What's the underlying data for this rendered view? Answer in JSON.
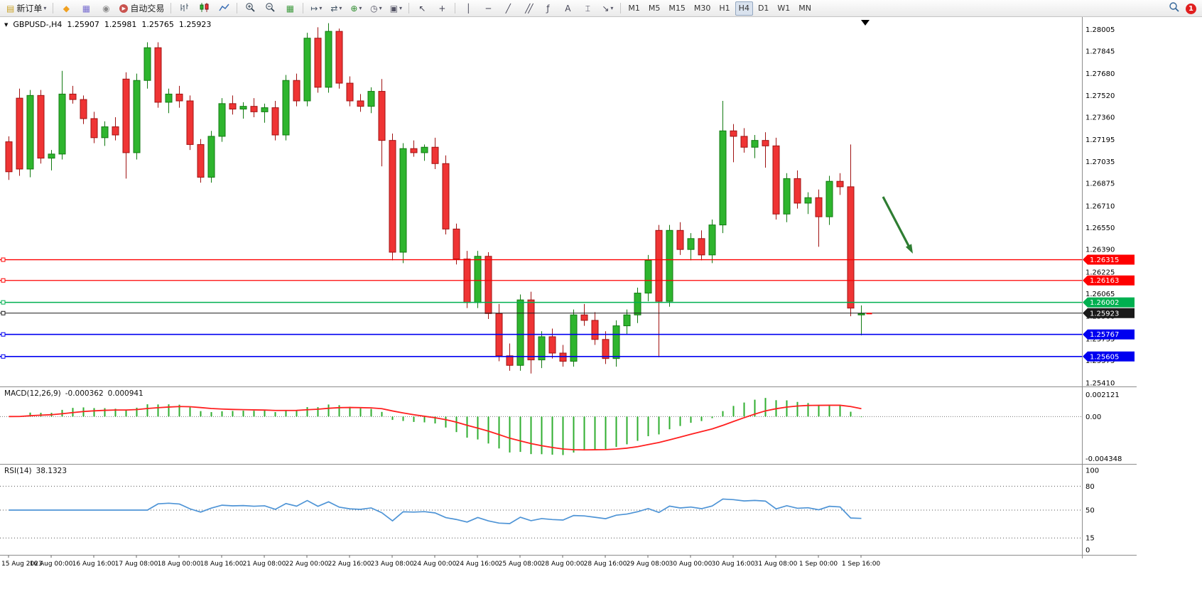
{
  "toolbar": {
    "new_order_label": "新订单",
    "autotrading_label": "自动交易",
    "timeframes": [
      "M1",
      "M5",
      "M15",
      "M30",
      "H1",
      "H4",
      "D1",
      "W1",
      "MN"
    ],
    "active_timeframe": "H4",
    "badge": "1"
  },
  "icons": {
    "dropdown": "▾",
    "new_order": "▤",
    "market": "◆",
    "data_window": "▦",
    "navigator": "◉",
    "autotrading": "▶",
    "tile": "▦",
    "auto_scroll": "↦",
    "chart_shift": "⇄",
    "indicators": "⊕",
    "periods": "◷",
    "templates": "▣",
    "cursor": "↖",
    "crosshair": "+",
    "vertical_line": "│",
    "horizontal_line": "─",
    "trendline": "╱",
    "channel": "╱╱",
    "fibonacci": "ƒ",
    "text": "A",
    "text_label": "⌶",
    "arrows": "↘"
  },
  "symbol_header": {
    "symbol": "GBPUSD-,H4",
    "open": "1.25907",
    "high": "1.25981",
    "low": "1.25765",
    "close": "1.25923"
  },
  "chart": {
    "price_axis": [
      "1.28005",
      "1.27845",
      "1.27680",
      "1.27520",
      "1.27360",
      "1.27195",
      "1.27035",
      "1.26875",
      "1.26710",
      "1.26550",
      "1.26390",
      "1.26225",
      "1.26065",
      "1.25900",
      "1.25735",
      "1.25575",
      "1.25410"
    ],
    "levels": [
      {
        "price": 1.26315,
        "label": "1.26315",
        "color": "#fe0000",
        "width": 1.3
      },
      {
        "price": 1.26163,
        "label": "1.26163",
        "color": "#fe0000",
        "width": 1.3
      },
      {
        "price": 1.26002,
        "label": "1.26002",
        "color": "#00b050",
        "width": 1.5
      },
      {
        "price": 1.25923,
        "label": "1.25923",
        "color": "#1a1a1a",
        "width": 1.0
      },
      {
        "price": 1.25767,
        "label": "1.25767",
        "color": "#0000f0",
        "width": 1.6
      },
      {
        "price": 1.25605,
        "label": "1.25605",
        "color": "#0000f0",
        "width": 1.6
      }
    ],
    "time_axis": [
      "15 Aug 2023",
      "16 Aug 00:00",
      "16 Aug 16:00",
      "17 Aug 08:00",
      "18 Aug 00:00",
      "18 Aug 16:00",
      "21 Aug 08:00",
      "22 Aug 00:00",
      "22 Aug 16:00",
      "23 Aug 08:00",
      "24 Aug 00:00",
      "24 Aug 16:00",
      "25 Aug 08:00",
      "28 Aug 00:00",
      "28 Aug 16:00",
      "29 Aug 08:00",
      "30 Aug 00:00",
      "30 Aug 16:00",
      "31 Aug 08:00",
      "1 Sep 00:00",
      "1 Sep 16:00"
    ]
  },
  "chart_data": {
    "type": "candlestick",
    "symbol": "GBPUSD-",
    "timeframe": "H4",
    "ohlc_order": [
      "open",
      "high",
      "low",
      "close"
    ],
    "candles": [
      [
        1.2718,
        1.2722,
        1.269,
        1.2696
      ],
      [
        1.275,
        1.2757,
        1.2693,
        1.2698
      ],
      [
        1.2698,
        1.2756,
        1.2692,
        1.2752
      ],
      [
        1.2752,
        1.2756,
        1.2702,
        1.2706
      ],
      [
        1.2706,
        1.2712,
        1.2697,
        1.2709
      ],
      [
        1.2709,
        1.277,
        1.2705,
        1.2753
      ],
      [
        1.2753,
        1.2759,
        1.2746,
        1.2749
      ],
      [
        1.2749,
        1.2752,
        1.2731,
        1.2735
      ],
      [
        1.2735,
        1.274,
        1.2717,
        1.2721
      ],
      [
        1.2721,
        1.2733,
        1.2715,
        1.2729
      ],
      [
        1.2729,
        1.2736,
        1.2719,
        1.2723
      ],
      [
        1.2764,
        1.2769,
        1.2691,
        1.271
      ],
      [
        1.271,
        1.2768,
        1.2705,
        1.2763
      ],
      [
        1.2763,
        1.2791,
        1.2757,
        1.2787
      ],
      [
        1.2787,
        1.2791,
        1.2743,
        1.2747
      ],
      [
        1.2747,
        1.2757,
        1.2739,
        1.2753
      ],
      [
        1.2753,
        1.2759,
        1.2743,
        1.2748
      ],
      [
        1.2748,
        1.2752,
        1.2712,
        1.2716
      ],
      [
        1.2716,
        1.272,
        1.2688,
        1.2692
      ],
      [
        1.2692,
        1.2726,
        1.2688,
        1.2722
      ],
      [
        1.2722,
        1.275,
        1.2718,
        1.2746
      ],
      [
        1.2746,
        1.2752,
        1.2738,
        1.2742
      ],
      [
        1.2742,
        1.2747,
        1.2735,
        1.2744
      ],
      [
        1.2744,
        1.275,
        1.2736,
        1.274
      ],
      [
        1.274,
        1.2746,
        1.2732,
        1.2743
      ],
      [
        1.2743,
        1.2748,
        1.2719,
        1.2723
      ],
      [
        1.2723,
        1.2767,
        1.2719,
        1.2763
      ],
      [
        1.2763,
        1.2768,
        1.2744,
        1.2748
      ],
      [
        1.2748,
        1.2798,
        1.2744,
        1.2794
      ],
      [
        1.2794,
        1.2802,
        1.2754,
        1.2758
      ],
      [
        1.2758,
        1.2805,
        1.2754,
        1.2799
      ],
      [
        1.2799,
        1.2801,
        1.2757,
        1.2761
      ],
      [
        1.2761,
        1.2766,
        1.2744,
        1.2748
      ],
      [
        1.2748,
        1.2753,
        1.274,
        1.2744
      ],
      [
        1.2744,
        1.2758,
        1.2739,
        1.2755
      ],
      [
        1.2755,
        1.2764,
        1.27,
        1.2719
      ],
      [
        1.2719,
        1.2724,
        1.2631,
        1.2637
      ],
      [
        1.2637,
        1.2717,
        1.2629,
        1.2713
      ],
      [
        1.2713,
        1.2719,
        1.2707,
        1.271
      ],
      [
        1.271,
        1.2716,
        1.2704,
        1.2714
      ],
      [
        1.2714,
        1.2721,
        1.2698,
        1.2702
      ],
      [
        1.2702,
        1.2708,
        1.265,
        1.2654
      ],
      [
        1.2654,
        1.2658,
        1.2628,
        1.2632
      ],
      [
        1.2632,
        1.2638,
        1.2596,
        1.26
      ],
      [
        1.26,
        1.2638,
        1.2596,
        1.2634
      ],
      [
        1.2634,
        1.2637,
        1.2588,
        1.2592
      ],
      [
        1.2592,
        1.2599,
        1.2557,
        1.2561
      ],
      [
        1.2561,
        1.257,
        1.255,
        1.2554
      ],
      [
        1.2554,
        1.2606,
        1.255,
        1.2602
      ],
      [
        1.2602,
        1.2608,
        1.2548,
        1.2558
      ],
      [
        1.2558,
        1.2579,
        1.2552,
        1.2575
      ],
      [
        1.2575,
        1.2581,
        1.2559,
        1.2563
      ],
      [
        1.2563,
        1.2569,
        1.2553,
        1.2557
      ],
      [
        1.2557,
        1.2595,
        1.2553,
        1.2591
      ],
      [
        1.2591,
        1.2599,
        1.2583,
        1.2587
      ],
      [
        1.2587,
        1.2593,
        1.2569,
        1.2573
      ],
      [
        1.2573,
        1.2579,
        1.2555,
        1.2559
      ],
      [
        1.2559,
        1.2587,
        1.2553,
        1.2583
      ],
      [
        1.2583,
        1.2595,
        1.2577,
        1.2591
      ],
      [
        1.2591,
        1.2611,
        1.2585,
        1.2607
      ],
      [
        1.2607,
        1.2635,
        1.2601,
        1.2631
      ],
      [
        1.2653,
        1.2657,
        1.256,
        1.2601
      ],
      [
        1.2601,
        1.2657,
        1.2597,
        1.2653
      ],
      [
        1.2653,
        1.2659,
        1.2635,
        1.2639
      ],
      [
        1.2639,
        1.2651,
        1.2631,
        1.2647
      ],
      [
        1.2647,
        1.2653,
        1.2631,
        1.2635
      ],
      [
        1.2635,
        1.2661,
        1.2629,
        1.2657
      ],
      [
        1.2657,
        1.2748,
        1.2651,
        1.2726
      ],
      [
        1.2726,
        1.2731,
        1.2703,
        1.2722
      ],
      [
        1.2722,
        1.2728,
        1.271,
        1.2714
      ],
      [
        1.2714,
        1.2723,
        1.2706,
        1.2719
      ],
      [
        1.2719,
        1.2725,
        1.2699,
        1.2715
      ],
      [
        1.2715,
        1.2721,
        1.2661,
        1.2665
      ],
      [
        1.2665,
        1.2695,
        1.2659,
        1.2691
      ],
      [
        1.2691,
        1.2697,
        1.2669,
        1.2673
      ],
      [
        1.2673,
        1.2681,
        1.2665,
        1.2677
      ],
      [
        1.2677,
        1.2683,
        1.2641,
        1.2663
      ],
      [
        1.2663,
        1.2693,
        1.2657,
        1.2689
      ],
      [
        1.2689,
        1.2695,
        1.2679,
        1.2685
      ],
      [
        1.2685,
        1.2716,
        1.259,
        1.2596
      ],
      [
        1.2591,
        1.2598,
        1.2576,
        1.2592
      ]
    ]
  },
  "macd": {
    "title": "MACD(12,26,9)",
    "value_main": "-0.000362",
    "value_signal": "0.000941",
    "axis_max": "0.002121",
    "axis_zero": "0.00",
    "axis_min": "-0.004348",
    "fast": 12,
    "slow": 26,
    "signal": 9
  },
  "rsi": {
    "title": "RSI(14)",
    "value": "38.1323",
    "axis_labels": [
      "100",
      "80",
      "50",
      "15",
      "0"
    ],
    "levels": [
      80,
      50,
      15
    ],
    "period": 14
  },
  "colors": {
    "bull": "#2eb52e",
    "bull_border": "#117a11",
    "bear": "#ef3434",
    "bear_border": "#a01212",
    "macd_hist": "#2fae2f",
    "macd_signal": "#ff2020",
    "rsi_line": "#4e94d6",
    "arrow": "#2e7d32",
    "tag_text": "#ffffff"
  }
}
